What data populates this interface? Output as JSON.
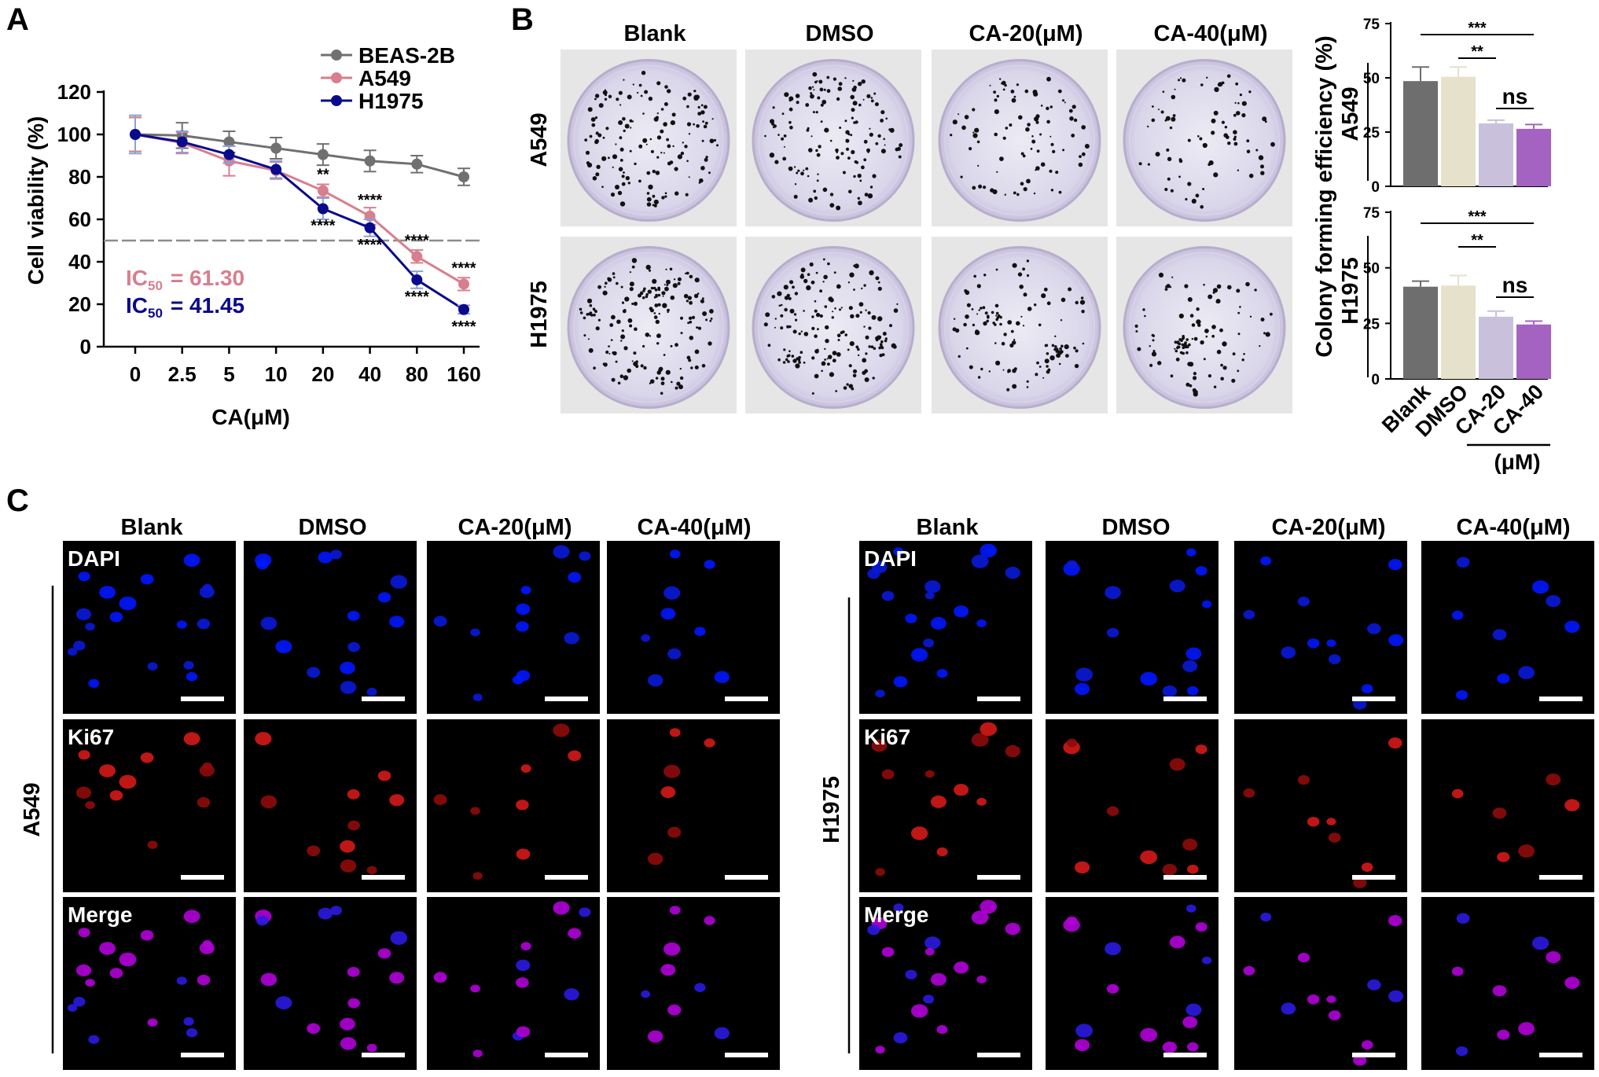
{
  "panels": {
    "a": "A",
    "b": "B",
    "c": "C"
  },
  "chart_data": [
    {
      "type": "line",
      "xlabel": "CA(μM)",
      "ylabel": "Cell viability (%)",
      "ylim": [
        0,
        120
      ],
      "y_ticks": [
        "0",
        "20",
        "40",
        "60",
        "80",
        "100",
        "120"
      ],
      "categories": [
        "0",
        "2.5",
        "5",
        "10",
        "20",
        "40",
        "80",
        "160"
      ],
      "reference_line": 50,
      "legend_position": "top-right",
      "series": [
        {
          "name": "BEAS-2B",
          "color": "#707070",
          "values": [
            100,
            99.5,
            96.5,
            93.5,
            90.5,
            87.5,
            86,
            80
          ],
          "errors": [
            8,
            6,
            5,
            5,
            5,
            5,
            4,
            4
          ],
          "stars": [
            "",
            "",
            "",
            "",
            "",
            "",
            "",
            ""
          ]
        },
        {
          "name": "A549",
          "color": "#d77f8e",
          "values": [
            100,
            96,
            87.5,
            83,
            73.5,
            61.5,
            42.5,
            29.5
          ],
          "errors": [
            8,
            5,
            7,
            4,
            3,
            4,
            3,
            3
          ],
          "stars": [
            "",
            "",
            "",
            "",
            "**",
            "****",
            "****",
            "****"
          ]
        },
        {
          "name": "H1975",
          "color": "#0a0a8c",
          "values": [
            100,
            96.5,
            90.5,
            83.5,
            65,
            56,
            31.5,
            17.5
          ],
          "errors": [
            9,
            5,
            4,
            4,
            5,
            4,
            4,
            2
          ],
          "stars": [
            "",
            "",
            "",
            "",
            "****",
            "****",
            "****",
            "****"
          ]
        }
      ],
      "ic50": [
        {
          "label": "IC",
          "sub": "50",
          "value": "= 61.30",
          "color": "#d77f8e"
        },
        {
          "label": "IC",
          "sub": "50",
          "value": "= 41.45",
          "color": "#0a0a8c"
        }
      ]
    },
    {
      "type": "bar",
      "row_label": "A549",
      "categories": [
        "Blank",
        "DMSO",
        "CA-20",
        "CA-40"
      ],
      "values": [
        48.5,
        50.5,
        29,
        26.5
      ],
      "errors": [
        6.5,
        4.5,
        1.5,
        2
      ],
      "colors": [
        "#6e6e6e",
        "#e6e1cb",
        "#c9c1dc",
        "#a463c0"
      ],
      "ylim": [
        0,
        75
      ],
      "y_ticks": [
        "0",
        "25",
        "50",
        "75"
      ],
      "significance": [
        {
          "from": "Blank",
          "to": "CA-40",
          "label": "***"
        },
        {
          "from": "DMSO",
          "to": "CA-20",
          "label": "**"
        },
        {
          "from": "CA-20",
          "to": "CA-40",
          "label": "ns"
        }
      ]
    },
    {
      "type": "bar",
      "row_label": "H1975",
      "categories": [
        "Blank",
        "DMSO",
        "CA-20",
        "CA-40"
      ],
      "values": [
        41.5,
        42,
        28,
        24.5
      ],
      "errors": [
        2.5,
        4.5,
        2.5,
        1.5
      ],
      "colors": [
        "#6e6e6e",
        "#e6e1cb",
        "#c9c1dc",
        "#a463c0"
      ],
      "ylim": [
        0,
        75
      ],
      "y_ticks": [
        "0",
        "25",
        "50",
        "75"
      ],
      "significance": [
        {
          "from": "Blank",
          "to": "CA-40",
          "label": "***"
        },
        {
          "from": "DMSO",
          "to": "CA-20",
          "label": "**"
        },
        {
          "from": "CA-20",
          "to": "CA-40",
          "label": "ns"
        }
      ]
    }
  ],
  "bar_chart": {
    "ylabel": "Colony forming efficiency (%)",
    "group_label": "(μM)"
  },
  "colony": {
    "columns": [
      "Blank",
      "DMSO",
      "CA-20(μM)",
      "CA-40(μM)"
    ],
    "rows": [
      "A549",
      "H1975"
    ]
  },
  "immuno": {
    "columns": [
      "Blank",
      "DMSO",
      "CA-20(μM)",
      "CA-40(μM)"
    ],
    "stains": [
      "DAPI",
      "Ki67",
      "Merge"
    ],
    "groups": [
      "A549",
      "H1975"
    ]
  }
}
